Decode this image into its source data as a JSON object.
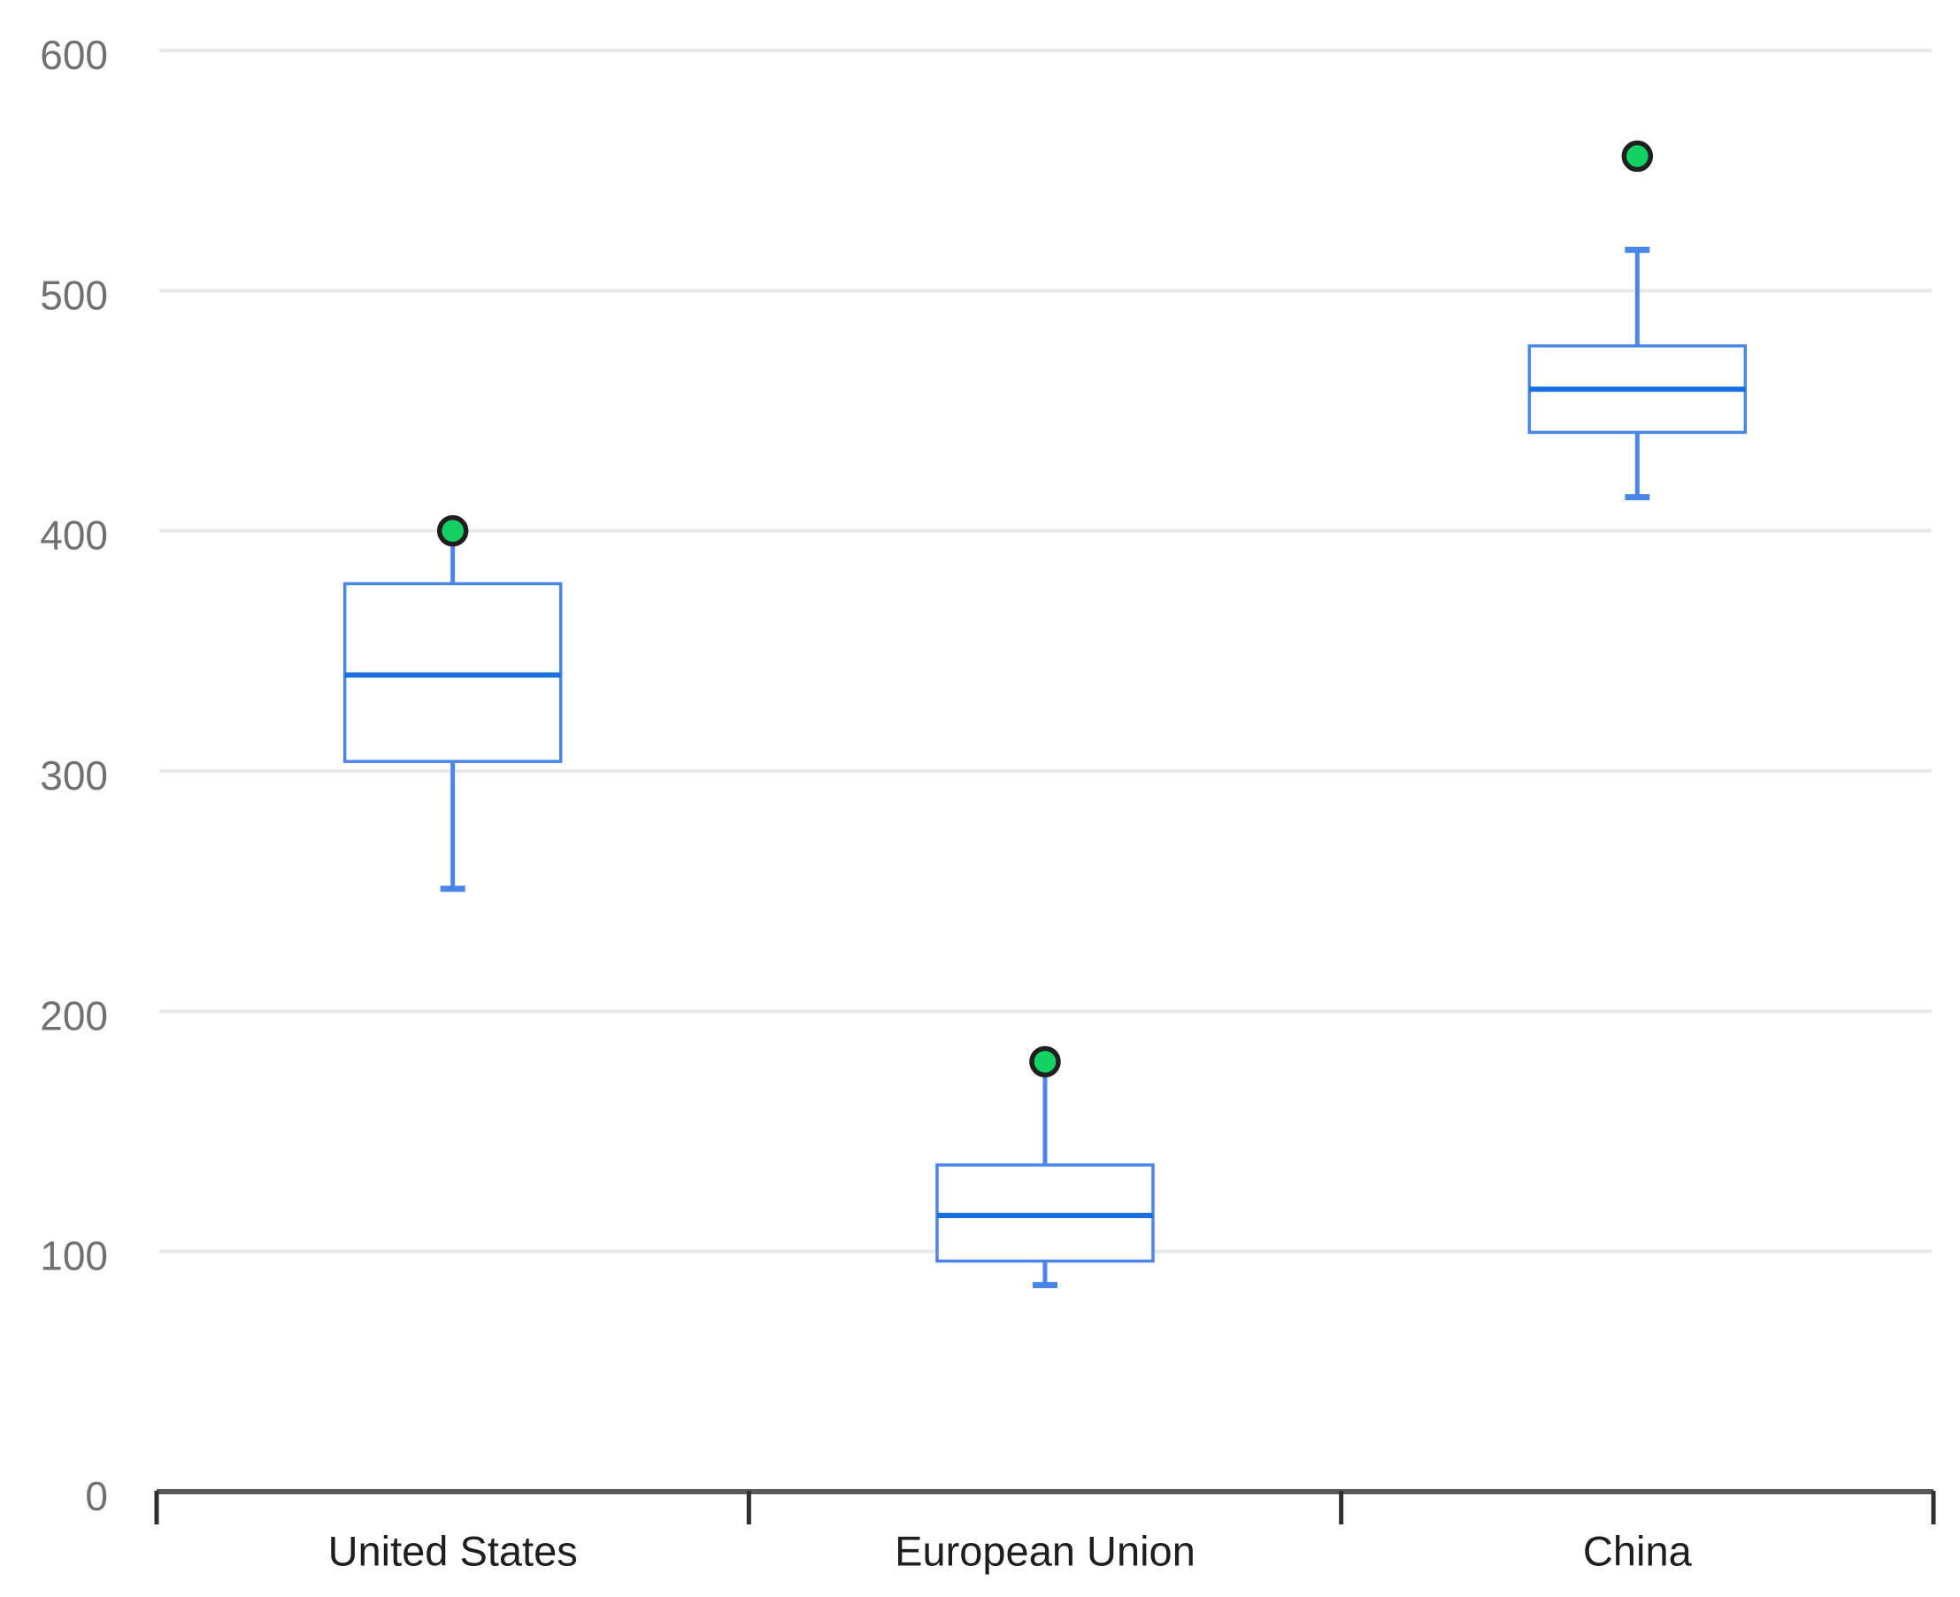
{
  "chart_data": {
    "type": "boxplot",
    "title": "",
    "xlabel": "",
    "ylabel": "",
    "categories": [
      "United States",
      "European Union",
      "China"
    ],
    "y_axis": {
      "min": 0,
      "max": 600,
      "tick_step": 100,
      "tick_labels": [
        "0",
        "100",
        "200",
        "300",
        "400",
        "500",
        "600"
      ]
    },
    "grid": true,
    "legend_position": "none",
    "series": [
      {
        "category": "United States",
        "min": 251,
        "q1": 304,
        "median": 340,
        "q3": 378,
        "whisker_high": 400,
        "whisker_high_cap": false,
        "point_value": 400
      },
      {
        "category": "European Union",
        "min": 86,
        "q1": 96,
        "median": 115,
        "q3": 136,
        "whisker_high": 179,
        "whisker_high_cap": false,
        "point_value": 179
      },
      {
        "category": "China",
        "min": 414,
        "q1": 441,
        "median": 459,
        "q3": 477,
        "whisker_high": 517,
        "whisker_high_cap": true,
        "point_value": 556
      }
    ],
    "colors": {
      "box_stroke": "#4a86e8",
      "box_fill": "#ffffff",
      "median_line": "#1a6fe0",
      "whisker": "#4a86e8",
      "point_fill": "#14d164",
      "point_stroke": "#1f1f1f",
      "gridline": "#e8e8e8",
      "axis_line": "#595a5c",
      "axis_tick": "#2f2f2f",
      "y_label_color": "#717171",
      "x_label_color": "#1e1e1e",
      "background": "#ffffff"
    }
  }
}
